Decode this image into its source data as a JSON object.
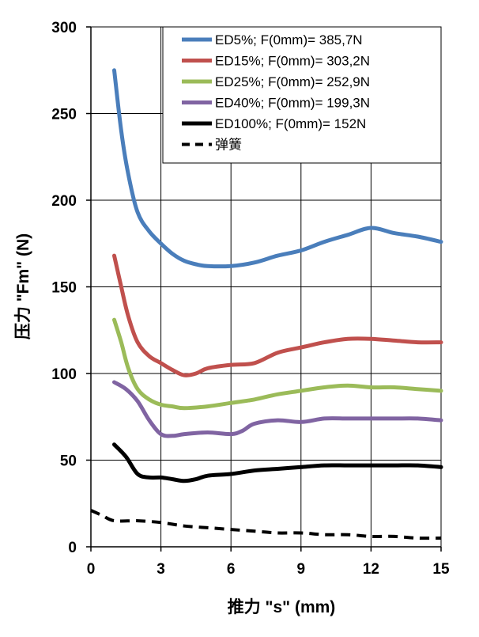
{
  "chart_data": {
    "type": "line",
    "xlabel": "推力 \"s\" (mm)",
    "ylabel": "压力 \"Fm\" (N)",
    "xlim": [
      0,
      15
    ],
    "ylim": [
      0,
      300
    ],
    "xticks": [
      0,
      3,
      6,
      9,
      12,
      15
    ],
    "yticks": [
      0,
      50,
      100,
      150,
      200,
      250,
      300
    ],
    "grid": true,
    "legend_position": "top-right",
    "series": [
      {
        "name": "ED5%; F(0mm)= 385,7N",
        "color": "#4a7ebb",
        "style": "solid",
        "x": [
          1,
          1.3,
          1.6,
          2,
          2.5,
          3,
          3.5,
          4,
          4.5,
          5,
          6,
          7,
          8,
          9,
          10,
          11,
          12,
          13,
          14,
          15
        ],
        "y": [
          275,
          240,
          215,
          193,
          182,
          175,
          169,
          165,
          163,
          162,
          162,
          164,
          168,
          171,
          176,
          180,
          184,
          181,
          179,
          176
        ]
      },
      {
        "name": "ED15%; F(0mm)= 303,2N",
        "color": "#c0504d",
        "style": "solid",
        "x": [
          1,
          1.3,
          1.6,
          2,
          2.5,
          3,
          3.5,
          4,
          4.5,
          5,
          6,
          7,
          8,
          9,
          10,
          11,
          12,
          13,
          14,
          15
        ],
        "y": [
          168,
          150,
          133,
          118,
          110,
          106,
          102,
          99,
          100,
          103,
          105,
          106,
          112,
          115,
          118,
          120,
          120,
          119,
          118,
          118
        ]
      },
      {
        "name": "ED25%; F(0mm)= 252,9N",
        "color": "#9bbb59",
        "style": "solid",
        "x": [
          1,
          1.3,
          1.6,
          2,
          2.5,
          3,
          3.5,
          4,
          5,
          6,
          7,
          8,
          9,
          10,
          11,
          12,
          13,
          14,
          15
        ],
        "y": [
          131,
          118,
          103,
          91,
          85,
          82,
          81,
          80,
          81,
          83,
          85,
          88,
          90,
          92,
          93,
          92,
          92,
          91,
          90
        ]
      },
      {
        "name": "ED40%; F(0mm)= 199,3N",
        "color": "#8064a2",
        "style": "solid",
        "x": [
          1,
          1.5,
          2,
          2.5,
          3,
          3.5,
          4,
          5,
          6,
          6.5,
          7,
          8,
          9,
          10,
          11,
          12,
          13,
          14,
          15
        ],
        "y": [
          95,
          91,
          84,
          73,
          65,
          64,
          65,
          66,
          65,
          67,
          71,
          73,
          72,
          74,
          74,
          74,
          74,
          74,
          73
        ]
      },
      {
        "name": "ED100%; F(0mm)= 152N",
        "color": "#000000",
        "style": "solid",
        "x": [
          1,
          1.5,
          2,
          2.5,
          3,
          3.5,
          4,
          4.5,
          5,
          6,
          7,
          8,
          9,
          10,
          11,
          12,
          13,
          14,
          15
        ],
        "y": [
          59,
          52,
          42,
          40,
          40,
          39,
          38,
          39,
          41,
          42,
          44,
          45,
          46,
          47,
          47,
          47,
          47,
          47,
          46
        ]
      },
      {
        "name": "弹簧",
        "color": "#000000",
        "style": "dashed",
        "x": [
          0,
          0.5,
          1,
          2,
          3,
          4,
          5,
          6,
          7,
          8,
          9,
          10,
          11,
          12,
          13,
          14,
          15
        ],
        "y": [
          21,
          18,
          15,
          15,
          14,
          12,
          11,
          10,
          9,
          8,
          8,
          7,
          7,
          6,
          6,
          5,
          5
        ]
      }
    ]
  }
}
